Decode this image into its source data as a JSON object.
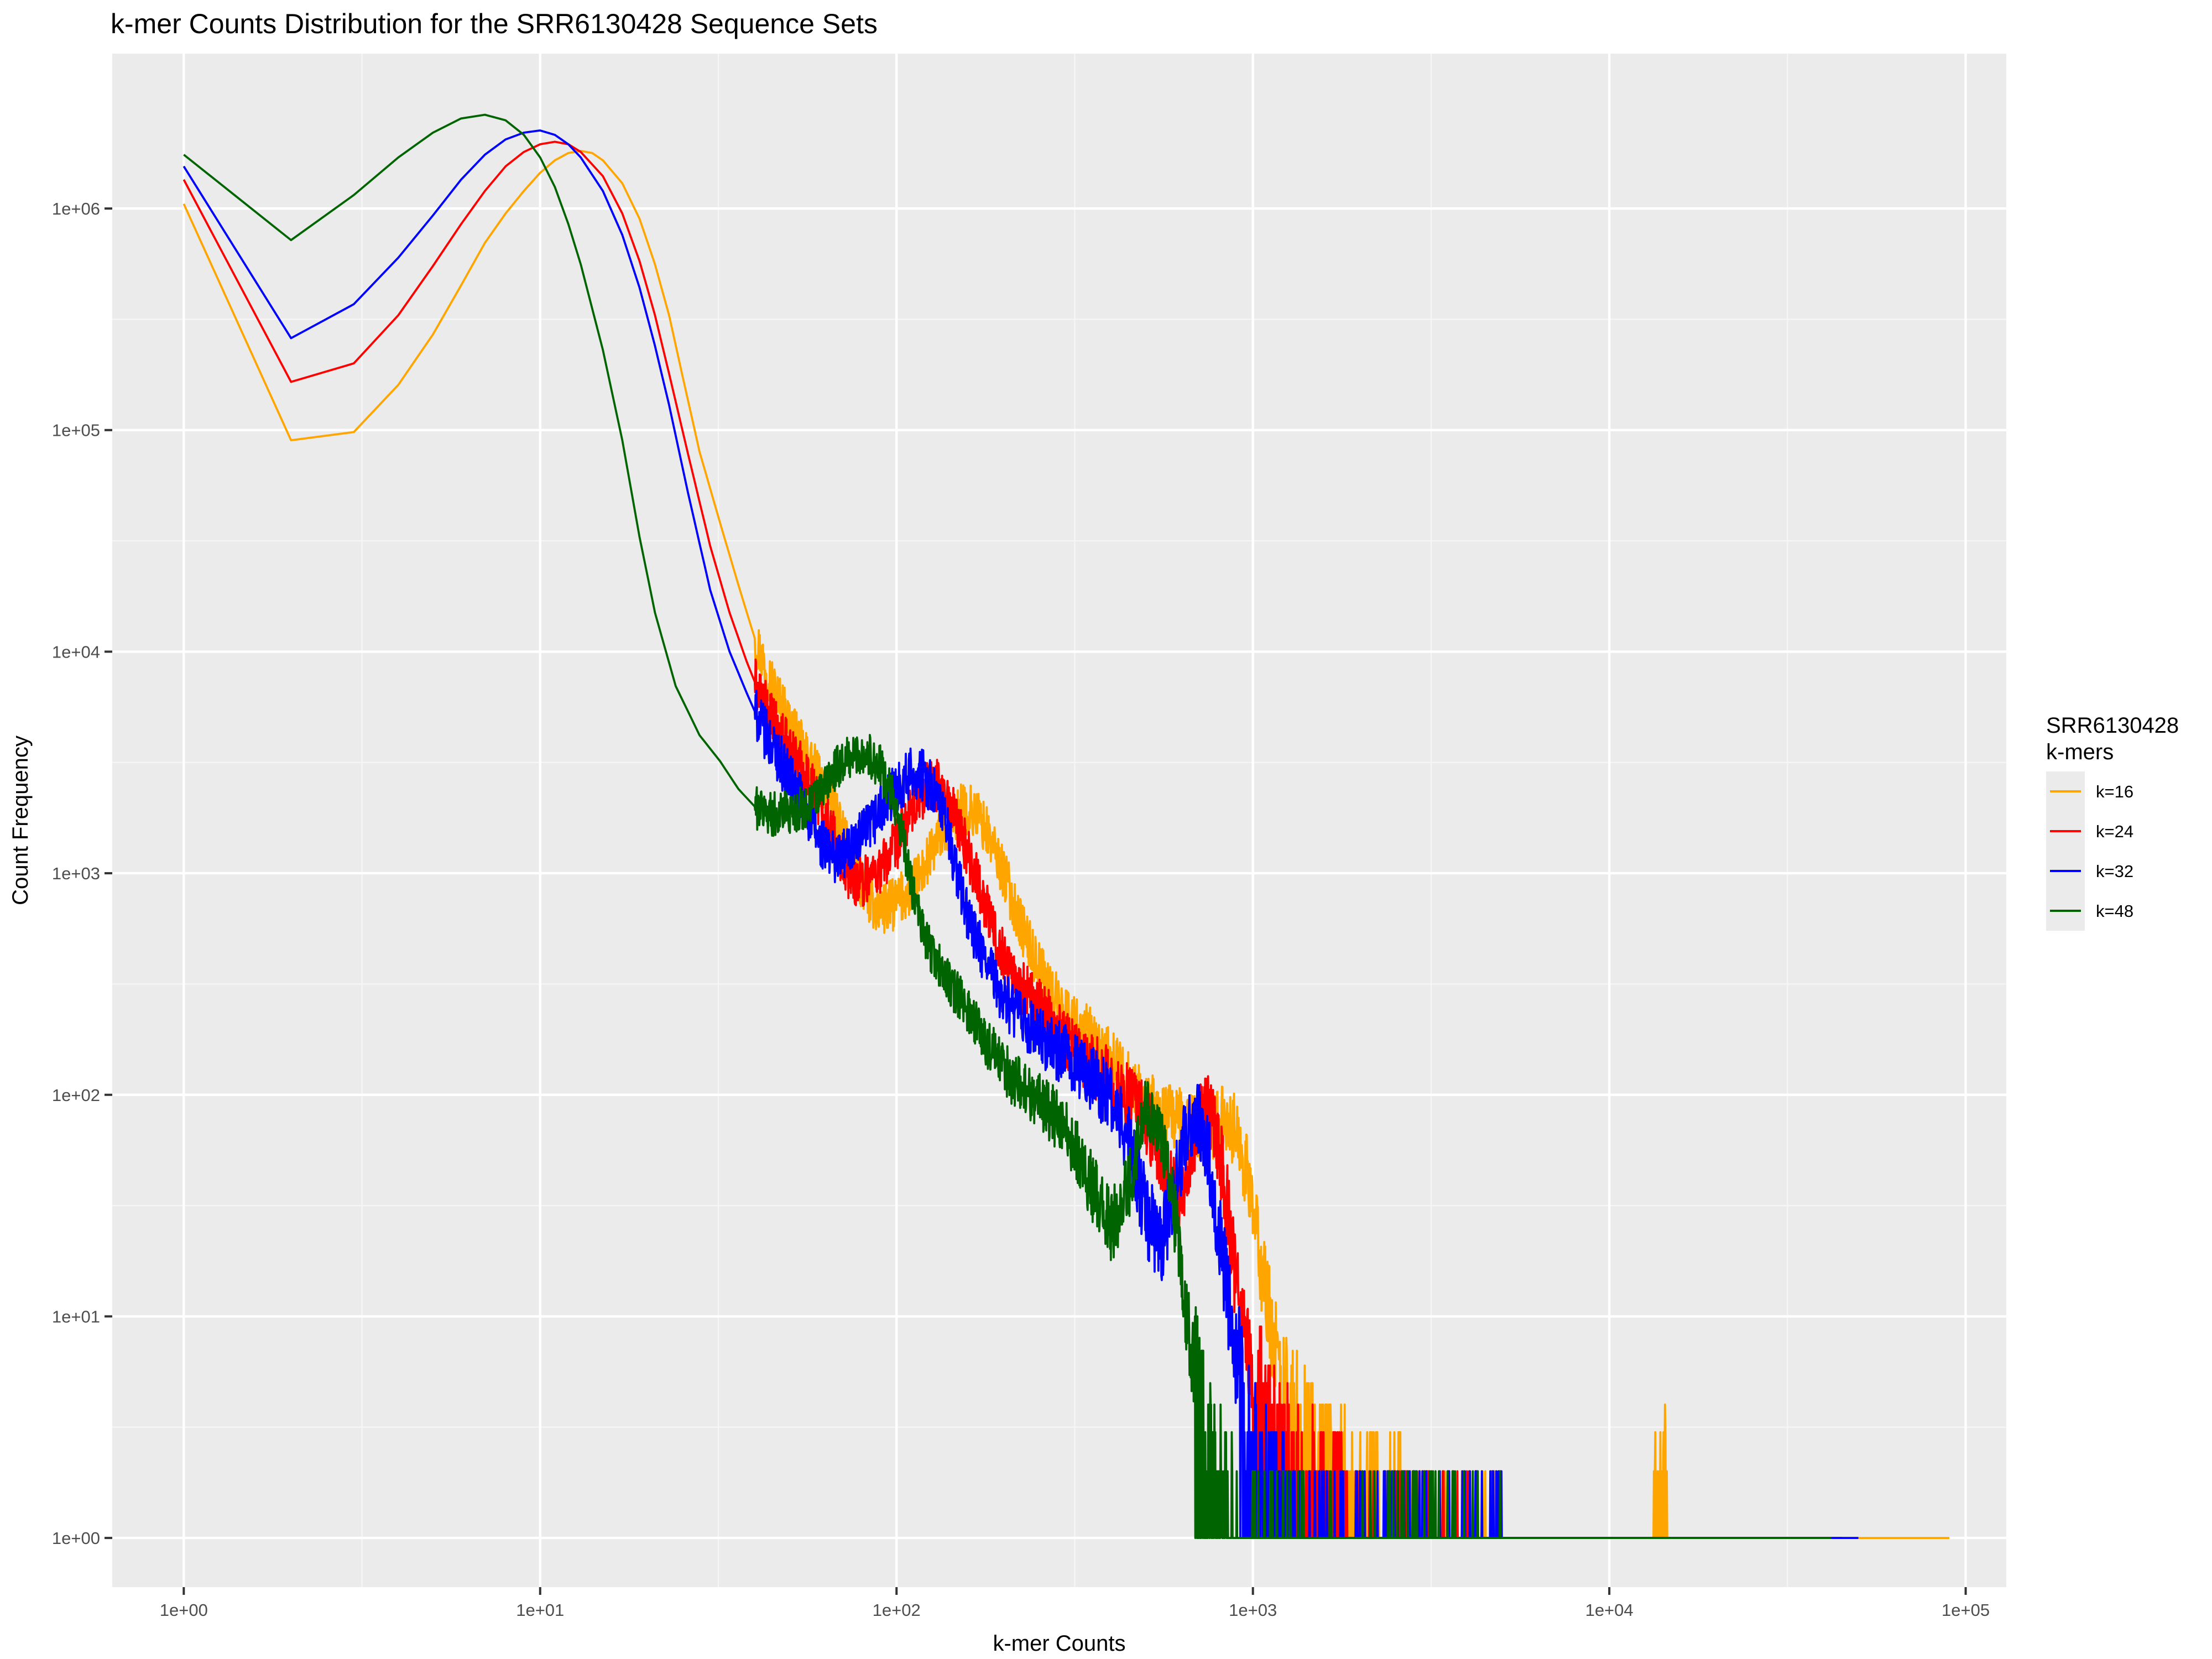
{
  "chart_data": {
    "type": "line",
    "title": "k-mer Counts Distribution for the SRR6130428 Sequence Sets",
    "xlabel": "k-mer Counts",
    "ylabel": "Count Frequency",
    "x_scale": "log10",
    "y_scale": "log10",
    "xlim": [
      0.63,
      130000
    ],
    "ylim": [
      0.6,
      5000000
    ],
    "x_ticks": [
      {
        "value": 1,
        "label": "1e+00"
      },
      {
        "value": 10,
        "label": "1e+01"
      },
      {
        "value": 100,
        "label": "1e+02"
      },
      {
        "value": 1000,
        "label": "1e+03"
      },
      {
        "value": 10000,
        "label": "1e+04"
      },
      {
        "value": 100000,
        "label": "1e+05"
      }
    ],
    "y_ticks": [
      {
        "value": 1,
        "label": "1e+00"
      },
      {
        "value": 10,
        "label": "1e+01"
      },
      {
        "value": 100,
        "label": "1e+02"
      },
      {
        "value": 1000,
        "label": "1e+03"
      },
      {
        "value": 10000,
        "label": "1e+04"
      },
      {
        "value": 100000,
        "label": "1e+05"
      },
      {
        "value": 1000000,
        "label": "1e+06"
      }
    ],
    "grid": true,
    "legend": {
      "title_lines": [
        "SRR6130428",
        "k-mers"
      ],
      "position": "right"
    },
    "series": [
      {
        "name": "k=16",
        "color": "#FFA500",
        "points": [
          [
            1,
            1050000
          ],
          [
            2,
            90000
          ],
          [
            3,
            98000
          ],
          [
            4,
            160000
          ],
          [
            5,
            270000
          ],
          [
            6,
            450000
          ],
          [
            7,
            700000
          ],
          [
            8,
            950000
          ],
          [
            9,
            1200000
          ],
          [
            10,
            1450000
          ],
          [
            11,
            1650000
          ],
          [
            12,
            1780000
          ],
          [
            13,
            1820000
          ],
          [
            14,
            1780000
          ],
          [
            15,
            1650000
          ],
          [
            17,
            1300000
          ],
          [
            19,
            900000
          ],
          [
            21,
            560000
          ],
          [
            23,
            330000
          ],
          [
            25,
            180000
          ],
          [
            28,
            80000
          ],
          [
            32,
            38000
          ],
          [
            36,
            20000
          ],
          [
            40,
            11500
          ],
          [
            45,
            7000
          ],
          [
            50,
            4800
          ],
          [
            55,
            3500
          ],
          [
            60,
            2800
          ],
          [
            65,
            2200
          ],
          [
            70,
            1600
          ],
          [
            75,
            1200
          ],
          [
            80,
            900
          ],
          [
            85,
            750
          ],
          [
            90,
            680
          ],
          [
            95,
            700
          ],
          [
            100,
            740
          ],
          [
            110,
            850
          ],
          [
            120,
            1050
          ],
          [
            130,
            1400
          ],
          [
            140,
            1700
          ],
          [
            150,
            1900
          ],
          [
            160,
            1950
          ],
          [
            170,
            1800
          ],
          [
            180,
            1500
          ],
          [
            200,
            1000
          ],
          [
            220,
            620
          ],
          [
            250,
            380
          ],
          [
            280,
            270
          ],
          [
            300,
            230
          ],
          [
            350,
            180
          ],
          [
            400,
            140
          ],
          [
            450,
            110
          ],
          [
            500,
            90
          ],
          [
            550,
            80
          ],
          [
            600,
            75
          ],
          [
            650,
            72
          ],
          [
            700,
            70
          ],
          [
            750,
            68
          ],
          [
            800,
            72
          ],
          [
            850,
            80
          ],
          [
            900,
            65
          ],
          [
            950,
            48
          ],
          [
            1000,
            30
          ],
          [
            1050,
            18
          ],
          [
            1100,
            11
          ],
          [
            1200,
            5
          ],
          [
            1300,
            3
          ],
          [
            1500,
            2
          ],
          [
            1800,
            1.5
          ],
          [
            2200,
            1.2
          ],
          [
            3000,
            1
          ],
          [
            4000,
            1
          ],
          [
            5000,
            1
          ],
          [
            13000,
            1
          ],
          [
            14000,
            2
          ],
          [
            15000,
            1
          ],
          [
            30000,
            1
          ],
          [
            90000,
            1
          ]
        ],
        "noise": 0.12
      },
      {
        "name": "k=24",
        "color": "#FF0000",
        "points": [
          [
            1,
            1350000
          ],
          [
            2,
            165000
          ],
          [
            3,
            200000
          ],
          [
            4,
            330000
          ],
          [
            5,
            550000
          ],
          [
            6,
            850000
          ],
          [
            7,
            1200000
          ],
          [
            8,
            1550000
          ],
          [
            9,
            1800000
          ],
          [
            10,
            1950000
          ],
          [
            11,
            2000000
          ],
          [
            12,
            1950000
          ],
          [
            13,
            1800000
          ],
          [
            15,
            1400000
          ],
          [
            17,
            950000
          ],
          [
            19,
            580000
          ],
          [
            21,
            330000
          ],
          [
            23,
            180000
          ],
          [
            26,
            78000
          ],
          [
            30,
            30000
          ],
          [
            34,
            15000
          ],
          [
            38,
            9000
          ],
          [
            42,
            6000
          ],
          [
            46,
            4500
          ],
          [
            50,
            3600
          ],
          [
            55,
            2900
          ],
          [
            60,
            2200
          ],
          [
            65,
            1600
          ],
          [
            70,
            1150
          ],
          [
            75,
            950
          ],
          [
            80,
            920
          ],
          [
            90,
            1050
          ],
          [
            100,
            1350
          ],
          [
            110,
            1900
          ],
          [
            120,
            2400
          ],
          [
            125,
            2600
          ],
          [
            130,
            2500
          ],
          [
            140,
            2100
          ],
          [
            150,
            1600
          ],
          [
            170,
            900
          ],
          [
            190,
            520
          ],
          [
            210,
            350
          ],
          [
            250,
            250
          ],
          [
            300,
            180
          ],
          [
            350,
            140
          ],
          [
            400,
            115
          ],
          [
            450,
            95
          ],
          [
            500,
            80
          ],
          [
            550,
            50
          ],
          [
            600,
            35
          ],
          [
            650,
            45
          ],
          [
            700,
            75
          ],
          [
            750,
            85
          ],
          [
            800,
            60
          ],
          [
            850,
            30
          ],
          [
            900,
            14
          ],
          [
            950,
            8
          ],
          [
            1000,
            5
          ],
          [
            1100,
            3
          ],
          [
            1200,
            2
          ],
          [
            1500,
            1.5
          ],
          [
            2000,
            1
          ],
          [
            4000,
            1
          ],
          [
            25000,
            1
          ],
          [
            45000,
            1
          ]
        ],
        "noise": 0.12
      },
      {
        "name": "k=32",
        "color": "#0000FF",
        "points": [
          [
            1,
            1550000
          ],
          [
            2,
            260000
          ],
          [
            3,
            370000
          ],
          [
            4,
            600000
          ],
          [
            5,
            930000
          ],
          [
            6,
            1350000
          ],
          [
            7,
            1750000
          ],
          [
            8,
            2050000
          ],
          [
            9,
            2200000
          ],
          [
            10,
            2250000
          ],
          [
            11,
            2150000
          ],
          [
            12,
            1950000
          ],
          [
            13,
            1700000
          ],
          [
            15,
            1200000
          ],
          [
            17,
            760000
          ],
          [
            19,
            440000
          ],
          [
            21,
            240000
          ],
          [
            23,
            130000
          ],
          [
            26,
            52000
          ],
          [
            30,
            19000
          ],
          [
            34,
            10000
          ],
          [
            38,
            6500
          ],
          [
            42,
            4500
          ],
          [
            46,
            3500
          ],
          [
            50,
            2700
          ],
          [
            55,
            2000
          ],
          [
            60,
            1450
          ],
          [
            65,
            1200
          ],
          [
            70,
            1200
          ],
          [
            80,
            1450
          ],
          [
            90,
            1900
          ],
          [
            100,
            2450
          ],
          [
            110,
            2800
          ],
          [
            115,
            2850
          ],
          [
            120,
            2700
          ],
          [
            130,
            2200
          ],
          [
            140,
            1500
          ],
          [
            150,
            900
          ],
          [
            160,
            600
          ],
          [
            180,
            380
          ],
          [
            200,
            270
          ],
          [
            250,
            180
          ],
          [
            300,
            150
          ],
          [
            350,
            120
          ],
          [
            400,
            95
          ],
          [
            450,
            60
          ],
          [
            500,
            30
          ],
          [
            550,
            20
          ],
          [
            600,
            35
          ],
          [
            650,
            70
          ],
          [
            700,
            80
          ],
          [
            750,
            55
          ],
          [
            800,
            25
          ],
          [
            850,
            12
          ],
          [
            900,
            6
          ],
          [
            950,
            3
          ],
          [
            1000,
            2
          ],
          [
            1100,
            1.5
          ],
          [
            1300,
            1
          ],
          [
            1800,
            1
          ],
          [
            26000,
            1
          ],
          [
            38000,
            1
          ],
          [
            50000,
            1
          ]
        ],
        "noise": 0.12
      },
      {
        "name": "k=48",
        "color": "#006400",
        "points": [
          [
            1,
            1750000
          ],
          [
            2,
            720000
          ],
          [
            3,
            1150000
          ],
          [
            4,
            1700000
          ],
          [
            5,
            2200000
          ],
          [
            6,
            2550000
          ],
          [
            7,
            2650000
          ],
          [
            8,
            2500000
          ],
          [
            9,
            2150000
          ],
          [
            10,
            1700000
          ],
          [
            11,
            1250000
          ],
          [
            12,
            850000
          ],
          [
            13,
            560000
          ],
          [
            15,
            230000
          ],
          [
            17,
            90000
          ],
          [
            19,
            33000
          ],
          [
            21,
            15000
          ],
          [
            24,
            7000
          ],
          [
            28,
            4200
          ],
          [
            32,
            3200
          ],
          [
            36,
            2400
          ],
          [
            40,
            2000
          ],
          [
            45,
            1850
          ],
          [
            50,
            1900
          ],
          [
            55,
            1950
          ],
          [
            60,
            2200
          ],
          [
            65,
            2700
          ],
          [
            70,
            3150
          ],
          [
            75,
            3400
          ],
          [
            80,
            3500
          ],
          [
            85,
            3350
          ],
          [
            90,
            3000
          ],
          [
            100,
            2000
          ],
          [
            110,
            900
          ],
          [
            120,
            500
          ],
          [
            140,
            320
          ],
          [
            160,
            240
          ],
          [
            180,
            170
          ],
          [
            200,
            130
          ],
          [
            250,
            95
          ],
          [
            300,
            70
          ],
          [
            350,
            40
          ],
          [
            400,
            25
          ],
          [
            450,
            40
          ],
          [
            500,
            90
          ],
          [
            550,
            70
          ],
          [
            600,
            30
          ],
          [
            650,
            10
          ],
          [
            700,
            4
          ],
          [
            750,
            2
          ],
          [
            800,
            1.5
          ],
          [
            900,
            1
          ],
          [
            1100,
            1
          ],
          [
            42000,
            1
          ]
        ],
        "noise": 0.1
      }
    ]
  }
}
